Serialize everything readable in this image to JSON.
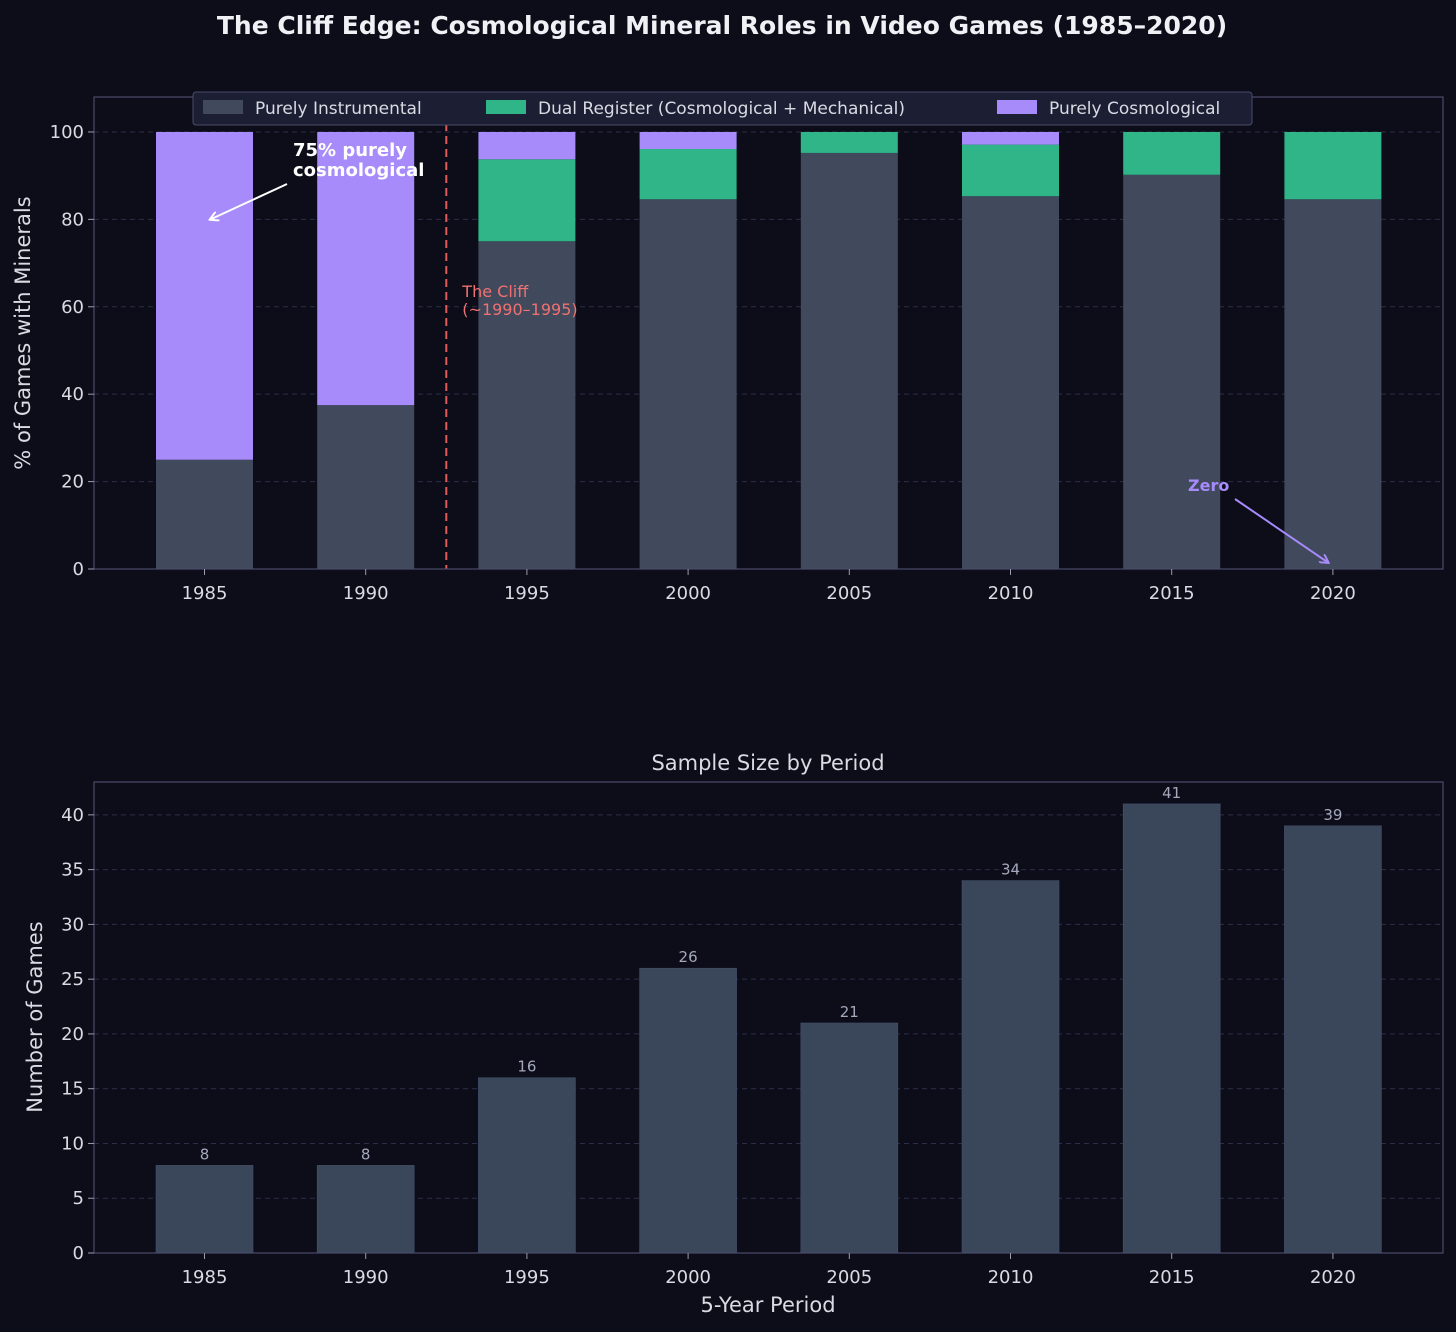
{
  "title": "The Cliff Edge: Cosmological Mineral Roles in Video Games (1985–2020)",
  "colors": {
    "background": "#0c0d18",
    "instrumental": "#414a5d",
    "dual": "#2fb588",
    "cosmological": "#a78bfa",
    "count_bar": "#3a4659",
    "cliff_line": "#e05a5a",
    "cliff_text": "#f07171",
    "grid": "#2c2e48",
    "spine": "#4a4c6a"
  },
  "chart_data": [
    {
      "type": "bar",
      "stacked": true,
      "categories": [
        "1985",
        "1990",
        "1995",
        "2000",
        "2005",
        "2010",
        "2015",
        "2020"
      ],
      "series": [
        {
          "name": "Purely Instrumental",
          "values": [
            25,
            37.5,
            75,
            84.6,
            95.2,
            85.3,
            90.2,
            84.6
          ]
        },
        {
          "name": "Dual Register (Cosmological + Mechanical)",
          "values": [
            0,
            0,
            18.75,
            11.5,
            4.8,
            11.8,
            9.8,
            15.4
          ]
        },
        {
          "name": "Purely Cosmological",
          "values": [
            75,
            62.5,
            6.25,
            3.9,
            0,
            2.9,
            0,
            0
          ]
        }
      ],
      "ylabel": "% of Games with Minerals",
      "xlabel": "",
      "ylim": [
        0,
        108
      ],
      "yticks": [
        0,
        20,
        40,
        60,
        80,
        100
      ],
      "grid": true,
      "legend": "top-center",
      "annotations": {
        "cosmological_note": "75% purely\ncosmological",
        "zero_note": "Zero",
        "cliff_label": "The Cliff\n(~1990–1995)",
        "cliff_x": 1992.5
      }
    },
    {
      "type": "bar",
      "title": "Sample Size by Period",
      "categories": [
        "1985",
        "1990",
        "1995",
        "2000",
        "2005",
        "2010",
        "2015",
        "2020"
      ],
      "values": [
        8,
        8,
        16,
        26,
        21,
        34,
        41,
        39
      ],
      "ylabel": "Number of Games",
      "xlabel": "5-Year Period",
      "ylim": [
        0,
        43
      ],
      "yticks": [
        0,
        5,
        10,
        15,
        20,
        25,
        30,
        35,
        40
      ],
      "grid": true
    }
  ]
}
